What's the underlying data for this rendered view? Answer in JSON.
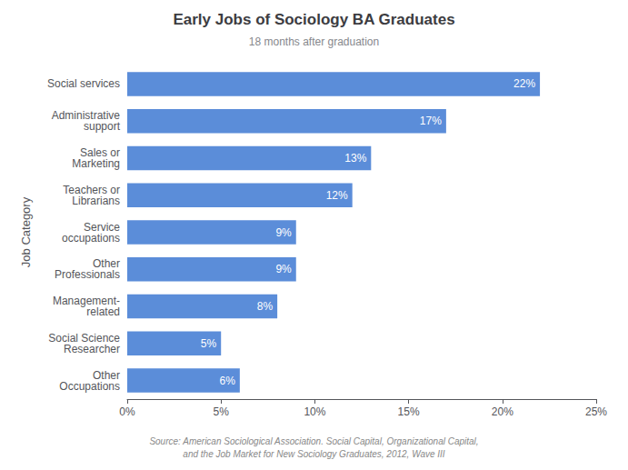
{
  "chart_data": {
    "type": "bar",
    "orientation": "horizontal",
    "title": "Early Jobs of Sociology BA Graduates",
    "subtitle": "18 months after graduation",
    "source": "Source: American Sociological Association. Social Capital, Organizational Capital,\nand the Job Market for New Sociology Graduates, 2012, Wave III",
    "ylabel": "Job Category",
    "categories": [
      "Social services",
      "Administrative\nsupport",
      "Sales or\nMarketing",
      "Teachers or\nLibrarians",
      "Service\noccupations",
      "Other\nProfessionals",
      "Management-\nrelated",
      "Social Science\nResearcher",
      "Other\nOccupations"
    ],
    "values": [
      22,
      17,
      13,
      12,
      9,
      9,
      8,
      5,
      6
    ],
    "value_labels": [
      "22%",
      "17%",
      "13%",
      "12%",
      "9%",
      "9%",
      "8%",
      "5%",
      "6%"
    ],
    "data_labels": true,
    "color": "#5b8dd9",
    "xlim": [
      0,
      25
    ],
    "xticks": [
      {
        "value": 0,
        "label": "0%"
      },
      {
        "value": 5,
        "label": "5%"
      },
      {
        "value": 10,
        "label": "10%"
      },
      {
        "value": 15,
        "label": "15%"
      },
      {
        "value": 20,
        "label": "20%"
      },
      {
        "value": 25,
        "label": "25%"
      }
    ],
    "grid": false
  }
}
